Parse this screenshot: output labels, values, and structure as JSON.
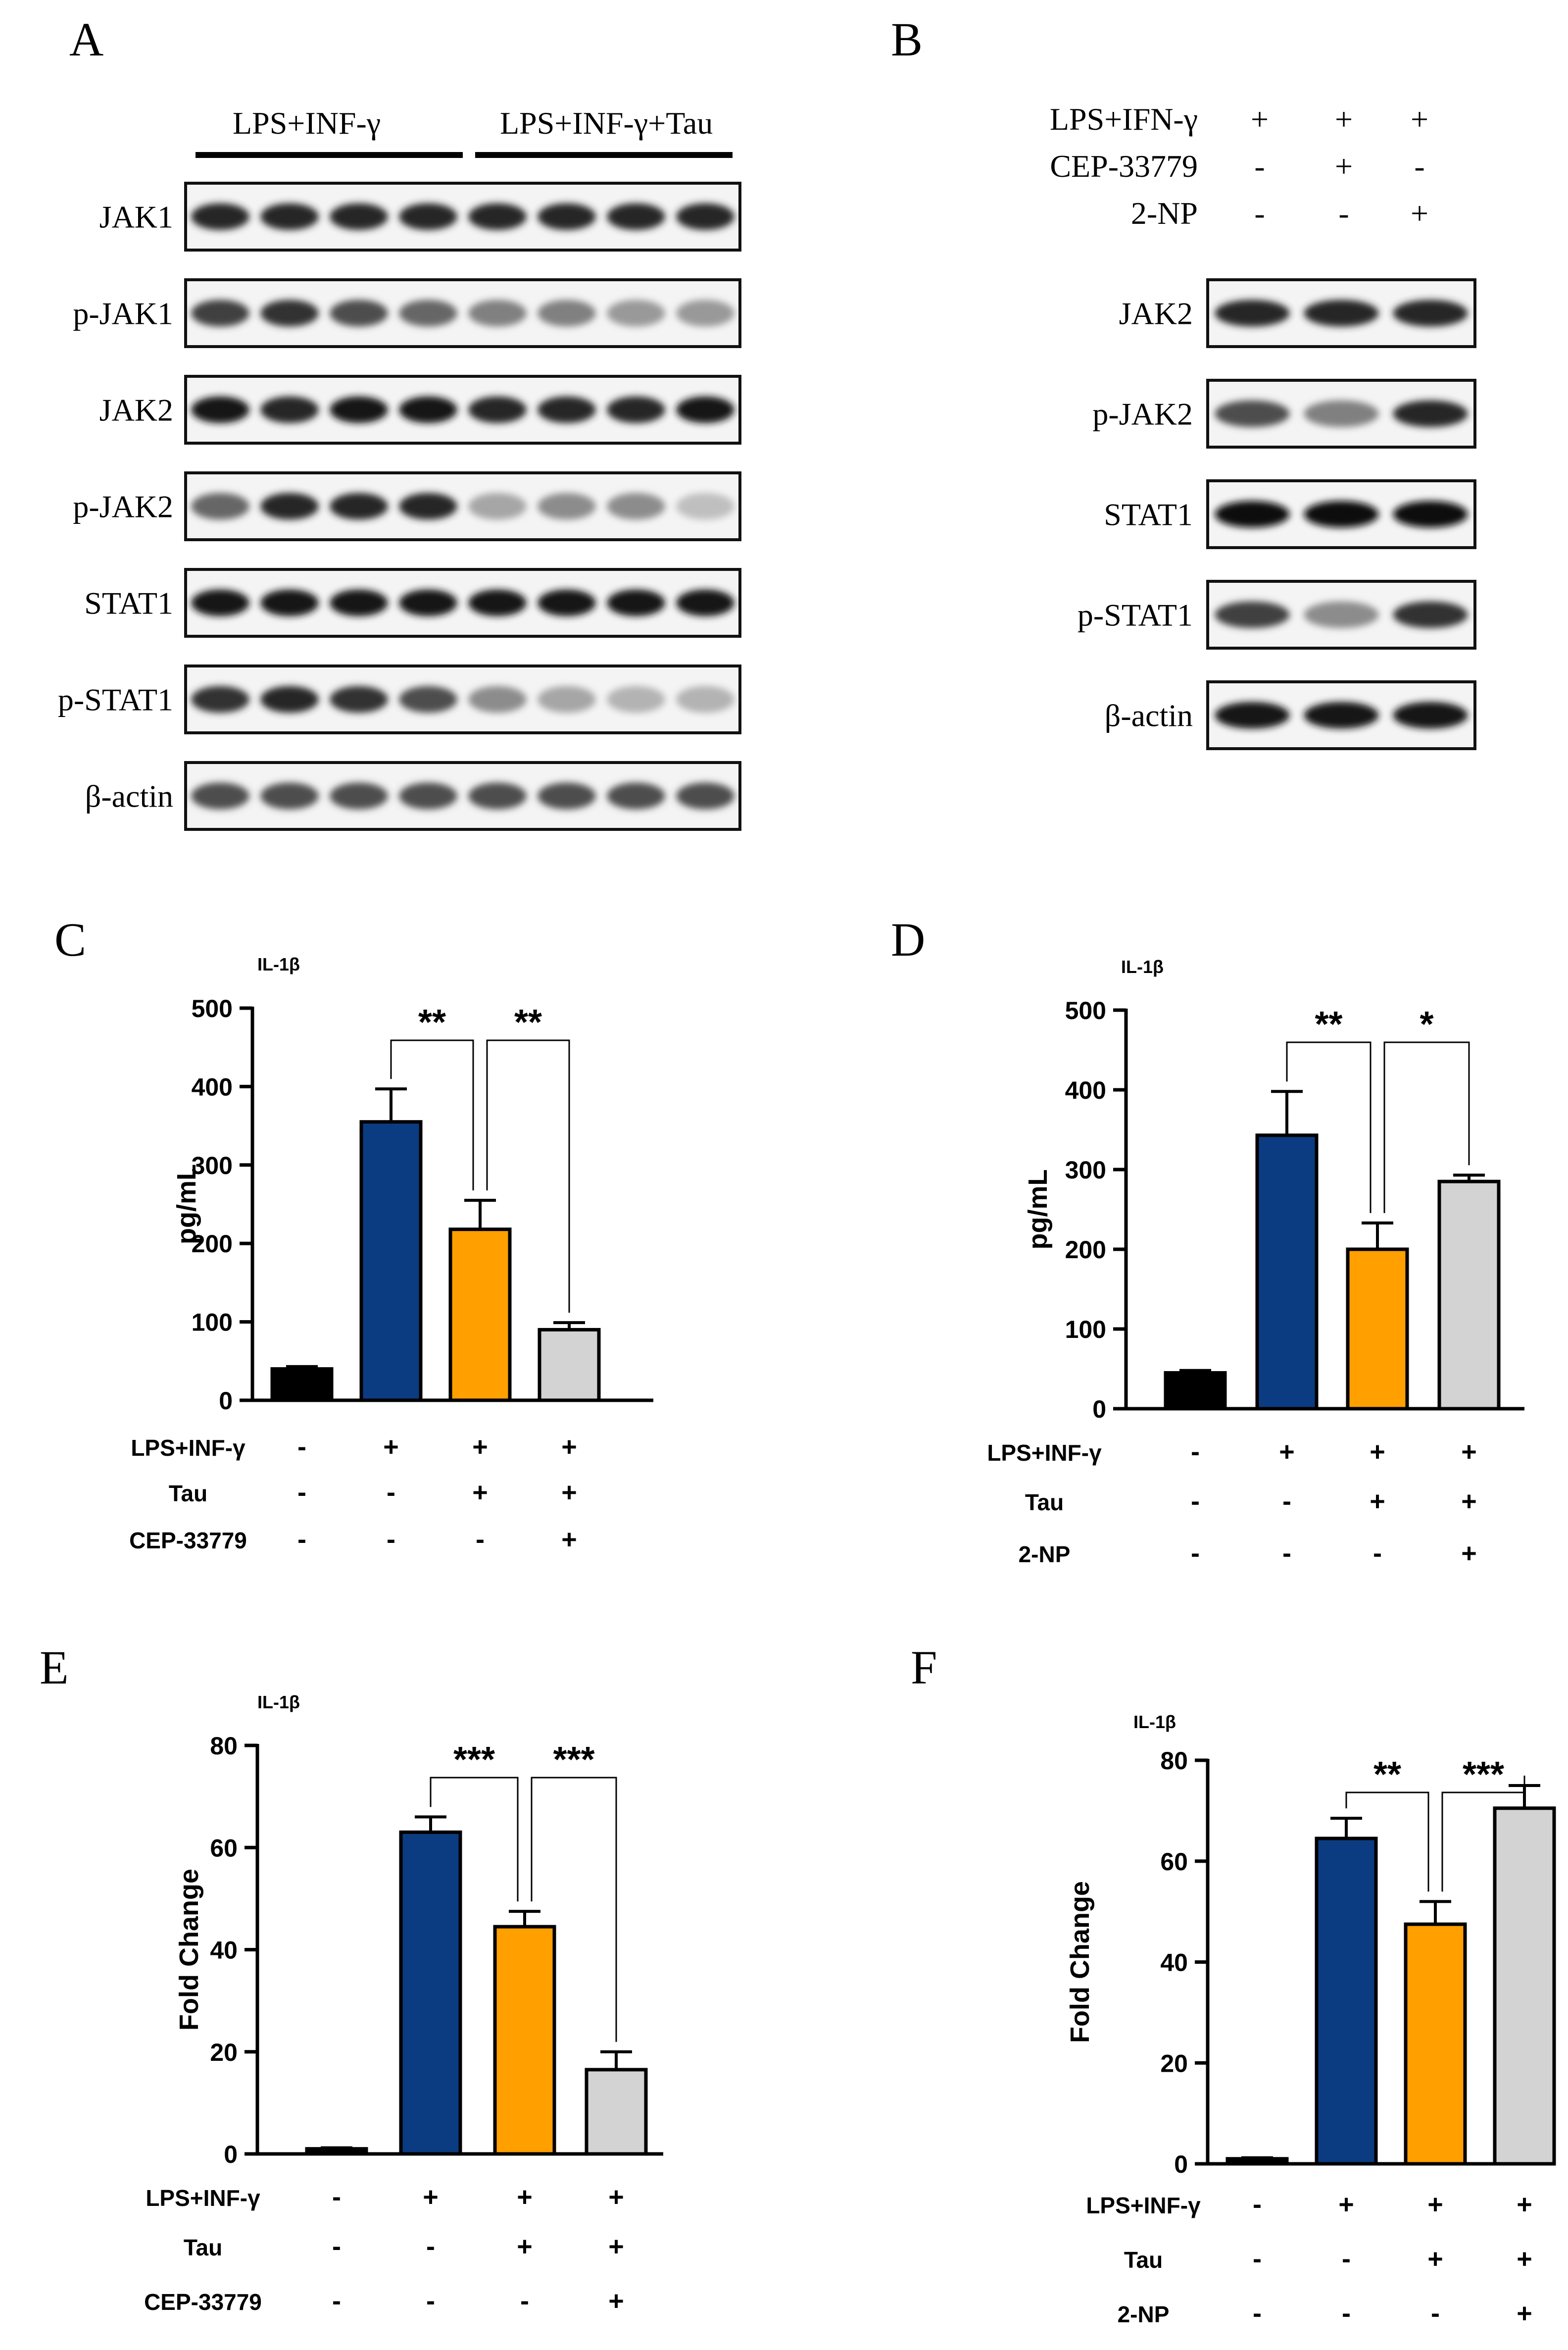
{
  "panels": {
    "A": {
      "letter": "A",
      "groups": [
        "LPS+INF-γ",
        "LPS+INF-γ+Tau"
      ],
      "blots": [
        "JAK1",
        "p-JAK1",
        "JAK2",
        "p-JAK2",
        "STAT1",
        "p-STAT1",
        "β-actin"
      ],
      "lanes": 8,
      "band_intensity": {
        "JAK1": [
          0.85,
          0.85,
          0.85,
          0.85,
          0.85,
          0.85,
          0.85,
          0.85
        ],
        "p-JAK1": [
          0.75,
          0.8,
          0.7,
          0.6,
          0.5,
          0.5,
          0.4,
          0.4
        ],
        "JAK2": [
          0.9,
          0.85,
          0.9,
          0.9,
          0.85,
          0.85,
          0.85,
          0.9
        ],
        "p-JAK2": [
          0.6,
          0.85,
          0.85,
          0.85,
          0.35,
          0.45,
          0.45,
          0.25
        ],
        "STAT1": [
          0.9,
          0.9,
          0.9,
          0.9,
          0.9,
          0.9,
          0.9,
          0.9
        ],
        "p-STAT1": [
          0.8,
          0.85,
          0.8,
          0.7,
          0.45,
          0.35,
          0.3,
          0.3
        ],
        "β-actin": [
          0.7,
          0.7,
          0.7,
          0.7,
          0.7,
          0.7,
          0.7,
          0.7
        ]
      }
    },
    "B": {
      "letter": "B",
      "treatments": [
        {
          "label": "LPS+IFN-γ",
          "signs": [
            "+",
            "+",
            "+"
          ]
        },
        {
          "label": "CEP-33779",
          "signs": [
            "-",
            "+",
            "-"
          ]
        },
        {
          "label": "2-NP",
          "signs": [
            "-",
            "-",
            "+"
          ]
        }
      ],
      "blots": [
        "JAK2",
        "p-JAK2",
        "STAT1",
        "p-STAT1",
        "β-actin"
      ],
      "lanes": 3,
      "band_intensity": {
        "JAK2": [
          0.85,
          0.85,
          0.85
        ],
        "p-JAK2": [
          0.7,
          0.5,
          0.85
        ],
        "STAT1": [
          0.95,
          0.95,
          0.95
        ],
        "p-STAT1": [
          0.75,
          0.45,
          0.8
        ],
        "β-actin": [
          0.9,
          0.9,
          0.9
        ]
      }
    },
    "C": {
      "letter": "C"
    },
    "D": {
      "letter": "D"
    },
    "E": {
      "letter": "E"
    },
    "F": {
      "letter": "F"
    }
  },
  "chart_data": [
    {
      "panel": "C",
      "type": "bar",
      "title": "IL-1β",
      "ylabel": "pg/mL",
      "ylim": [
        0,
        500
      ],
      "yticks": [
        0,
        100,
        200,
        300,
        400,
        500
      ],
      "values": [
        40,
        355,
        218,
        90
      ],
      "errors": [
        3,
        42,
        37,
        9
      ],
      "colors": [
        "#000000",
        "#0b3c82",
        "#ff9f00",
        "#d3d3d3"
      ],
      "treatments": [
        {
          "label": "LPS+INF-γ",
          "signs": [
            "-",
            "+",
            "+",
            "+"
          ]
        },
        {
          "label": "Tau",
          "signs": [
            "-",
            "-",
            "+",
            "+"
          ]
        },
        {
          "label": "CEP-33779",
          "signs": [
            "-",
            "-",
            "-",
            "+"
          ]
        }
      ],
      "significance": [
        {
          "from": 1,
          "to": 2,
          "label": "**"
        },
        {
          "from": 2,
          "to": 3,
          "label": "**"
        }
      ]
    },
    {
      "panel": "D",
      "type": "bar",
      "title": "IL-1β",
      "ylabel": "pg/mL",
      "ylim": [
        0,
        500
      ],
      "yticks": [
        0,
        100,
        200,
        300,
        400,
        500
      ],
      "values": [
        45,
        343,
        200,
        285
      ],
      "errors": [
        3,
        55,
        33,
        8
      ],
      "colors": [
        "#000000",
        "#0b3c82",
        "#ff9f00",
        "#d3d3d3"
      ],
      "treatments": [
        {
          "label": "LPS+INF-γ",
          "signs": [
            "-",
            "+",
            "+",
            "+"
          ]
        },
        {
          "label": "Tau",
          "signs": [
            "-",
            "-",
            "+",
            "+"
          ]
        },
        {
          "label": "2-NP",
          "signs": [
            "-",
            "-",
            "-",
            "+"
          ]
        }
      ],
      "significance": [
        {
          "from": 1,
          "to": 2,
          "label": "**"
        },
        {
          "from": 2,
          "to": 3,
          "label": "*"
        }
      ]
    },
    {
      "panel": "E",
      "type": "bar",
      "title": "IL-1β",
      "ylabel": "Fold Change",
      "ylim": [
        0,
        80
      ],
      "yticks": [
        0,
        20,
        40,
        60,
        80
      ],
      "values": [
        1,
        63,
        44.5,
        16.5
      ],
      "errors": [
        0.2,
        3,
        3,
        3.5
      ],
      "colors": [
        "#000000",
        "#0b3c82",
        "#ff9f00",
        "#d3d3d3"
      ],
      "treatments": [
        {
          "label": "LPS+INF-γ",
          "signs": [
            "-",
            "+",
            "+",
            "+"
          ]
        },
        {
          "label": "Tau",
          "signs": [
            "-",
            "-",
            "+",
            "+"
          ]
        },
        {
          "label": "CEP-33779",
          "signs": [
            "-",
            "-",
            "-",
            "+"
          ]
        }
      ],
      "significance": [
        {
          "from": 1,
          "to": 2,
          "label": "***"
        },
        {
          "from": 2,
          "to": 3,
          "label": "***"
        }
      ]
    },
    {
      "panel": "F",
      "type": "bar",
      "title": "IL-1β",
      "ylabel": "Fold Change",
      "ylim": [
        0,
        80
      ],
      "yticks": [
        0,
        20,
        40,
        60,
        80
      ],
      "values": [
        1,
        64.5,
        47.5,
        70.5
      ],
      "errors": [
        0.2,
        4,
        4.5,
        4.5
      ],
      "colors": [
        "#000000",
        "#0b3c82",
        "#ff9f00",
        "#d3d3d3"
      ],
      "treatments": [
        {
          "label": "LPS+INF-γ",
          "signs": [
            "-",
            "+",
            "+",
            "+"
          ]
        },
        {
          "label": "Tau",
          "signs": [
            "-",
            "-",
            "+",
            "+"
          ]
        },
        {
          "label": "2-NP",
          "signs": [
            "-",
            "-",
            "-",
            "+"
          ]
        }
      ],
      "significance": [
        {
          "from": 1,
          "to": 2,
          "label": "**"
        },
        {
          "from": 2,
          "to": 3,
          "label": "***"
        }
      ]
    }
  ]
}
